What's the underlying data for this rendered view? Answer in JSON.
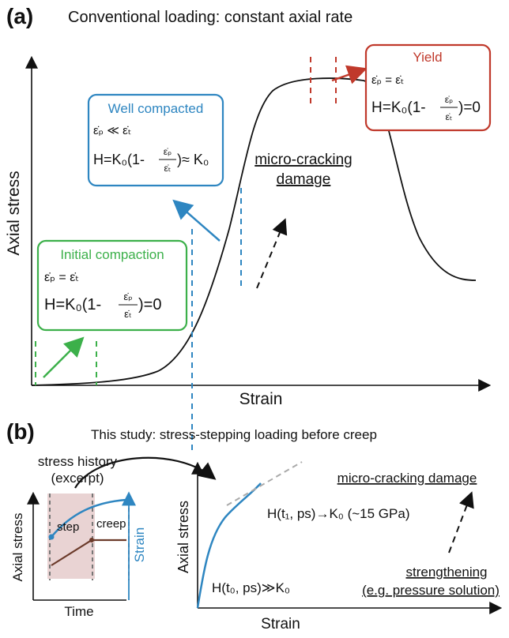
{
  "panel_a": {
    "label": "(a)",
    "title": "Conventional loading: constant axial rate",
    "y_label": "Axial stress",
    "x_label": "Strain",
    "boxes": [
      {
        "title": "Initial compaction",
        "rate": "ε̇ₚ = ε̇ₜ",
        "formula_left": "H=K₀(1-",
        "numerator": "ε̇ₚ",
        "denominator": "ε̇ₜ",
        "formula_right": ")=0"
      },
      {
        "title": "Well compacted",
        "rate": "ε̇ₚ ≪ ε̇ₜ",
        "formula_left": "H=K₀(1-",
        "numerator": "ε̇ₚ",
        "denominator": "ε̇ₜ",
        "formula_right": ")≈ K₀"
      },
      {
        "title": "Yield",
        "rate": "ε̇ₚ = ε̇ₜ",
        "formula_left": "H=K₀(1-",
        "numerator": "ε̇ₚ",
        "denominator": "ε̇ₜ",
        "formula_right": ")=0"
      }
    ],
    "annotation": [
      "micro-cracking",
      "damage"
    ]
  },
  "panel_b": {
    "label": "(b)",
    "title": "This study: stress-stepping loading before creep",
    "history": {
      "caption": [
        "stress history",
        "(excerpt)"
      ],
      "step": "step",
      "creep": "creep",
      "y_label": "Axial stress",
      "y2_label": "Strain",
      "x_label": "Time"
    },
    "main": {
      "y_label": "Axial stress",
      "x_label": "Strain",
      "h_t1": "H(t₁, ps)→K₀ (~15 GPa)",
      "h_t0": "H(t₀, ps)≫K₀",
      "damage": "micro-cracking damage",
      "strengthening": [
        "strengthening",
        "(e.g. pressure solution)"
      ]
    }
  }
}
